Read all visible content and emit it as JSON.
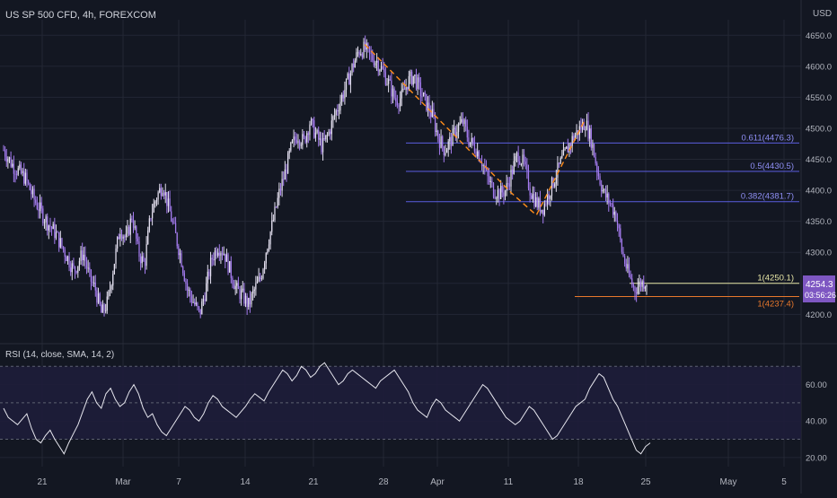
{
  "header": {
    "symbol_title": "US SP 500 CFD, 4h, FOREXCOM",
    "currency": "USD"
  },
  "colors": {
    "background": "#131722",
    "grid": "#232734",
    "candle": "#a57cf0",
    "candle_light": "#e6e2f2",
    "fib_line": "#5b5ee0",
    "fib_label": "#8f8ff5",
    "yellow_line": "#e8e7a6",
    "orange_line": "#e8782c",
    "price_tag": "#7e57c2",
    "rsi_line": "#e6e6ee",
    "rsi_band": "#1e1d3a",
    "axis_text": "#b2b5be",
    "zigzag": "#ff8c1a"
  },
  "chart_data": [
    {
      "type": "candlestick",
      "title": "US SP 500 CFD, 4h, FOREXCOM",
      "ylabel": "USD",
      "ylim": [
        4160,
        4675
      ],
      "y_ticks": [
        "4650.0",
        "4600.0",
        "4550.0",
        "4500.0",
        "4450.0",
        "4400.0",
        "4350.0",
        "4300.0",
        "4250.0",
        "4200.0"
      ],
      "x_tick_labels": [
        "21",
        "Mar",
        "7",
        "14",
        "21",
        "28",
        "Apr",
        "11",
        "18",
        "25",
        "May",
        "5"
      ],
      "close_path": [
        [
          0,
          4465
        ],
        [
          3,
          4440
        ],
        [
          7,
          4420
        ],
        [
          10,
          4385
        ],
        [
          14,
          4350
        ],
        [
          17,
          4330
        ],
        [
          20,
          4300
        ],
        [
          23,
          4270
        ],
        [
          26,
          4300
        ],
        [
          28,
          4260
        ],
        [
          30,
          4240
        ],
        [
          32,
          4200
        ],
        [
          34,
          4220
        ],
        [
          36,
          4280
        ],
        [
          38,
          4340
        ],
        [
          40,
          4320
        ],
        [
          42,
          4360
        ],
        [
          44,
          4300
        ],
        [
          46,
          4280
        ],
        [
          48,
          4360
        ],
        [
          50,
          4390
        ],
        [
          52,
          4410
        ],
        [
          54,
          4370
        ],
        [
          56,
          4330
        ],
        [
          58,
          4290
        ],
        [
          60,
          4240
        ],
        [
          62,
          4220
        ],
        [
          64,
          4200
        ],
        [
          66,
          4240
        ],
        [
          68,
          4290
        ],
        [
          70,
          4310
        ],
        [
          72,
          4300
        ],
        [
          74,
          4270
        ],
        [
          76,
          4240
        ],
        [
          78,
          4230
        ],
        [
          80,
          4215
        ],
        [
          82,
          4240
        ],
        [
          84,
          4260
        ],
        [
          86,
          4310
        ],
        [
          88,
          4350
        ],
        [
          90,
          4395
        ],
        [
          92,
          4430
        ],
        [
          94,
          4470
        ],
        [
          96,
          4490
        ],
        [
          98,
          4478
        ],
        [
          100,
          4510
        ],
        [
          102,
          4490
        ],
        [
          104,
          4470
        ],
        [
          106,
          4490
        ],
        [
          108,
          4520
        ],
        [
          110,
          4545
        ],
        [
          112,
          4570
        ],
        [
          114,
          4600
        ],
        [
          116,
          4625
        ],
        [
          118,
          4628
        ],
        [
          120,
          4615
        ],
        [
          122,
          4608
        ],
        [
          124,
          4590
        ],
        [
          126,
          4570
        ],
        [
          128,
          4545
        ],
        [
          130,
          4550
        ],
        [
          132,
          4575
        ],
        [
          134,
          4585
        ],
        [
          136,
          4560
        ],
        [
          138,
          4540
        ],
        [
          140,
          4520
        ],
        [
          142,
          4485
        ],
        [
          144,
          4465
        ],
        [
          146,
          4480
        ],
        [
          148,
          4500
        ],
        [
          150,
          4510
        ],
        [
          152,
          4480
        ],
        [
          154,
          4470
        ],
        [
          156,
          4450
        ],
        [
          158,
          4420
        ],
        [
          160,
          4400
        ],
        [
          162,
          4395
        ],
        [
          164,
          4400
        ],
        [
          166,
          4430
        ],
        [
          168,
          4460
        ],
        [
          170,
          4440
        ],
        [
          172,
          4400
        ],
        [
          174,
          4380
        ],
        [
          176,
          4370
        ],
        [
          178,
          4395
        ],
        [
          180,
          4420
        ],
        [
          182,
          4445
        ],
        [
          184,
          4465
        ],
        [
          186,
          4485
        ],
        [
          188,
          4498
        ],
        [
          190,
          4510
        ],
        [
          192,
          4480
        ],
        [
          194,
          4430
        ],
        [
          196,
          4395
        ],
        [
          198,
          4380
        ],
        [
          200,
          4360
        ],
        [
          202,
          4300
        ],
        [
          204,
          4265
        ],
        [
          206,
          4240
        ],
        [
          208,
          4250
        ],
        [
          210,
          4254
        ]
      ],
      "fib_levels": [
        {
          "ratio": "0.611",
          "value": "4476.3",
          "label": "0.611(4476.3)"
        },
        {
          "ratio": "0.5",
          "value": "4430.5",
          "label": "0.5(4430.5)"
        },
        {
          "ratio": "0.382",
          "value": "4381.7",
          "label": "0.382(4381.7)"
        }
      ],
      "price_lines": [
        {
          "name": "yellow",
          "value": "4250.1",
          "label": "1(4250.1)"
        },
        {
          "name": "orange",
          "value": "4237.4",
          "label": "1(4237.4)"
        }
      ],
      "last_price": "4254.3",
      "countdown": "03:56:26",
      "zigzag": [
        [
          118,
          4635
        ],
        [
          142,
          4515
        ],
        [
          166,
          4395
        ],
        [
          174,
          4360
        ],
        [
          190,
          4515
        ]
      ]
    },
    {
      "type": "line",
      "title": "RSI (14, close, SMA, 14, 2)",
      "ylim": [
        15,
        80
      ],
      "y_ticks": [
        "60.00",
        "40.00",
        "20.00"
      ],
      "bands": [
        30,
        50,
        70
      ],
      "values": [
        47,
        42,
        40,
        38,
        41,
        44,
        36,
        30,
        28,
        32,
        35,
        30,
        26,
        22,
        28,
        33,
        38,
        45,
        52,
        56,
        50,
        47,
        55,
        58,
        52,
        48,
        50,
        56,
        60,
        55,
        47,
        42,
        44,
        38,
        34,
        32,
        36,
        40,
        44,
        48,
        46,
        42,
        40,
        44,
        50,
        54,
        52,
        48,
        46,
        44,
        42,
        45,
        48,
        52,
        55,
        53,
        51,
        56,
        60,
        64,
        68,
        66,
        62,
        65,
        70,
        68,
        64,
        66,
        70,
        72,
        68,
        64,
        60,
        62,
        66,
        68,
        66,
        64,
        62,
        60,
        58,
        62,
        64,
        66,
        68,
        64,
        60,
        56,
        50,
        46,
        44,
        42,
        48,
        52,
        50,
        46,
        44,
        42,
        40,
        44,
        48,
        52,
        56,
        60,
        58,
        54,
        50,
        46,
        42,
        40,
        38,
        40,
        44,
        48,
        46,
        42,
        38,
        34,
        30,
        32,
        36,
        40,
        44,
        48,
        50,
        52,
        58,
        62,
        66,
        64,
        58,
        52,
        48,
        42,
        36,
        30,
        24,
        22,
        26,
        28
      ]
    }
  ]
}
